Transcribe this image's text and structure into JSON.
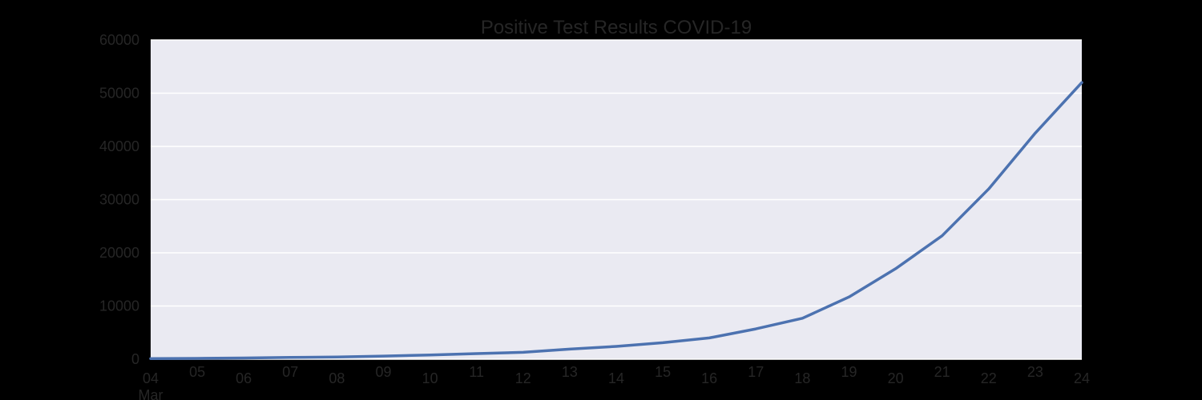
{
  "chart_data": {
    "type": "line",
    "title": "Positive Test Results COVID-19",
    "xlabel": "",
    "ylabel": "",
    "x_ticks": [
      "04",
      "05",
      "06",
      "07",
      "08",
      "09",
      "10",
      "11",
      "12",
      "13",
      "14",
      "15",
      "16",
      "17",
      "18",
      "19",
      "20",
      "21",
      "22",
      "23",
      "24"
    ],
    "x_tick_sublabel": "Mar",
    "ylim": [
      0,
      60000
    ],
    "y_ticks": [
      "0",
      "10000",
      "20000",
      "30000",
      "40000",
      "50000",
      "60000"
    ],
    "grid": true,
    "series": [
      {
        "name": "",
        "x": [
          "2020-03-04",
          "2020-03-05",
          "2020-03-06",
          "2020-03-07",
          "2020-03-08",
          "2020-03-09",
          "2020-03-10",
          "2020-03-11",
          "2020-03-12",
          "2020-03-13",
          "2020-03-14",
          "2020-03-15",
          "2020-03-16",
          "2020-03-17",
          "2020-03-18",
          "2020-03-19",
          "2020-03-20",
          "2020-03-21",
          "2020-03-22",
          "2020-03-23",
          "2020-03-24"
        ],
        "values": [
          120,
          150,
          220,
          330,
          420,
          580,
          800,
          1050,
          1300,
          1900,
          2400,
          3100,
          4000,
          5700,
          7700,
          11700,
          17000,
          23200,
          32000,
          42500,
          52000
        ]
      }
    ],
    "colors": {
      "background": "#000000",
      "plot_area": "#EAEAF2",
      "grid": "#FFFFFF",
      "line": "#4C72B0",
      "text": "#262626"
    }
  }
}
